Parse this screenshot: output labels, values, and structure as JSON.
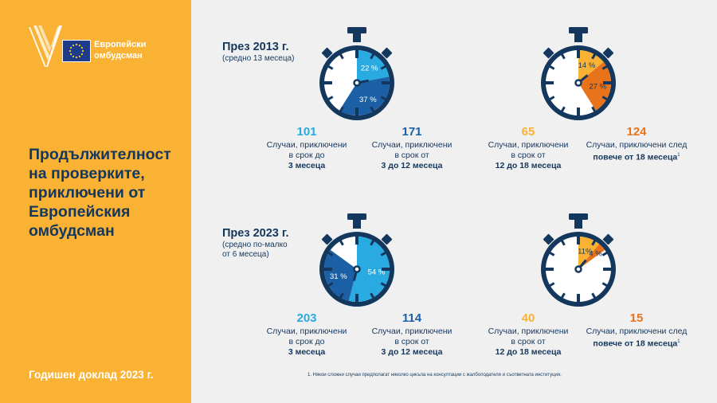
{
  "brand": {
    "name_line1": "Европейски",
    "name_line2": "омбудсман"
  },
  "title_lines": [
    "Продължителност",
    "на проверките,",
    "приключени от",
    "Европейския",
    "омбудсман"
  ],
  "report_label": "Годишен доклад 2023 г.",
  "footnote": "1. Някои сложни случаи предполагат няколко цикъла на консултации с жалбоподателя и съответната институция.",
  "colors": {
    "sidebar": "#f9b234",
    "navy": "#14375e",
    "light_blue": "#29abe2",
    "mid_blue": "#1b5fa5",
    "yellow": "#f9b234",
    "orange": "#e8731a"
  },
  "chart_data": [
    {
      "type": "pie",
      "period": "През 2013 г.",
      "period_note": "(средно 13 месеца)",
      "slices": [
        {
          "value": 22,
          "label": "22 %",
          "color": "#29abe2"
        },
        {
          "value": 37,
          "label": "37 %",
          "color": "#1b5fa5"
        },
        {
          "value": 14,
          "label": "14 %",
          "color": "#f9b234"
        },
        {
          "value": 27,
          "label": "27 %",
          "color": "#e8731a"
        }
      ],
      "stats": [
        {
          "count": "101",
          "lines": [
            "Случаи, приключени",
            "в срок до"
          ],
          "bold": "3 месеца",
          "color": "#29abe2"
        },
        {
          "count": "171",
          "lines": [
            "Случаи, приключени",
            "в срок от"
          ],
          "bold": "3 до 12 месеца",
          "color": "#1b5fa5"
        },
        {
          "count": "65",
          "lines": [
            "Случаи, приключени",
            "в срок от"
          ],
          "bold": "12 до 18 месеца",
          "color": "#f9b234"
        },
        {
          "count": "124",
          "lines": [
            "Случаи, приключени след"
          ],
          "bold": "повече от 18 месеца",
          "sup": "1",
          "color": "#e8731a"
        }
      ]
    },
    {
      "type": "pie",
      "period": "През 2023 г.",
      "period_note": "(средно по-малко от 6 месеца)",
      "period_note_lines": [
        "(средно по-малко",
        "от 6 месеца)"
      ],
      "slices": [
        {
          "value": 54,
          "label": "54 %",
          "color": "#29abe2"
        },
        {
          "value": 31,
          "label": "31 %",
          "color": "#1b5fa5"
        },
        {
          "value": 11,
          "label": "11%",
          "color": "#f9b234"
        },
        {
          "value": 4,
          "label": "4 %",
          "color": "#e8731a"
        }
      ],
      "stats": [
        {
          "count": "203",
          "lines": [
            "Случаи, приключени",
            "в срок до"
          ],
          "bold": "3 месеца",
          "color": "#29abe2"
        },
        {
          "count": "114",
          "lines": [
            "Случаи, приключени",
            "в срок от"
          ],
          "bold": "3 до 12 месеца",
          "color": "#1b5fa5"
        },
        {
          "count": "40",
          "lines": [
            "Случаи, приключени",
            "в срок от"
          ],
          "bold": "12 до 18 месеца",
          "color": "#f9b234"
        },
        {
          "count": "15",
          "lines": [
            "Случаи, приключени след"
          ],
          "bold": "повече от 18 месеца",
          "sup": "1",
          "color": "#e8731a"
        }
      ]
    }
  ]
}
